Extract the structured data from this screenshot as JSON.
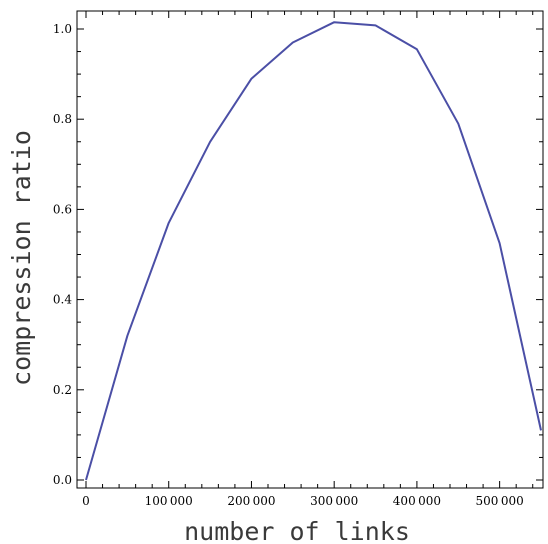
{
  "chart_data": {
    "type": "line",
    "title": "",
    "xlabel": "number of links",
    "ylabel": "compression ratio",
    "xlim": [
      0,
      550000
    ],
    "ylim": [
      0.0,
      1.0
    ],
    "x_ticks": [
      0,
      100000,
      200000,
      300000,
      400000,
      500000
    ],
    "x_tick_labels": [
      "0",
      "100 000",
      "200 000",
      "300 000",
      "400 000",
      "500 000"
    ],
    "y_ticks": [
      0.0,
      0.2,
      0.4,
      0.6,
      0.8,
      1.0
    ],
    "y_tick_labels": [
      "0.0",
      "0.2",
      "0.4",
      "0.6",
      "0.8",
      "1.0"
    ],
    "grid": false,
    "legend": "none",
    "series": [
      {
        "color": "#4b4fa6",
        "x": [
          0,
          50000,
          100000,
          150000,
          200000,
          250000,
          300000,
          350000,
          400000,
          450000,
          500000,
          550000
        ],
        "values": [
          0.0,
          0.32,
          0.57,
          0.75,
          0.89,
          0.97,
          1.015,
          1.008,
          0.955,
          0.79,
          0.525,
          0.11
        ]
      }
    ]
  }
}
